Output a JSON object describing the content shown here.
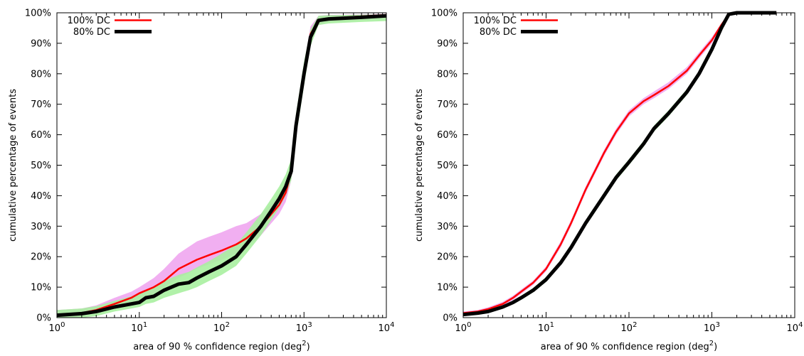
{
  "chart_data": [
    {
      "type": "line",
      "x_scale": "log",
      "xlim": [
        1,
        10000
      ],
      "ylim": [
        0,
        100
      ],
      "xlabel": "area of 90 % confidence region (deg",
      "xlabel_sup": "2",
      "xlabel_suffix": ")",
      "ylabel": "cumulative percentage of events",
      "x_ticks": [
        {
          "value": 1,
          "base": "10",
          "exp": "0"
        },
        {
          "value": 10,
          "base": "10",
          "exp": "1"
        },
        {
          "value": 100,
          "base": "10",
          "exp": "2"
        },
        {
          "value": 1000,
          "base": "10",
          "exp": "3"
        },
        {
          "value": 10000,
          "base": "10",
          "exp": "4"
        }
      ],
      "y_ticks": [
        {
          "value": 0,
          "label": "0%"
        },
        {
          "value": 10,
          "label": "10%"
        },
        {
          "value": 20,
          "label": "20%"
        },
        {
          "value": 30,
          "label": "30%"
        },
        {
          "value": 40,
          "label": "40%"
        },
        {
          "value": 50,
          "label": "50%"
        },
        {
          "value": 60,
          "label": "60%"
        },
        {
          "value": 70,
          "label": "70%"
        },
        {
          "value": 80,
          "label": "80%"
        },
        {
          "value": 90,
          "label": "90%"
        },
        {
          "value": 100,
          "label": "100%"
        }
      ],
      "grid": false,
      "legend_position": "top-left",
      "series": [
        {
          "name": "100% DC",
          "color": "#ff0000",
          "band_color": "#f0a6f0",
          "x": [
            1,
            2,
            3,
            5,
            8,
            10,
            15,
            20,
            30,
            50,
            70,
            100,
            150,
            200,
            300,
            500,
            600,
            700,
            800,
            900,
            1000,
            1200,
            1500,
            2000,
            5000,
            10000
          ],
          "y": [
            1,
            1.5,
            2.5,
            4.5,
            6.5,
            8,
            10,
            12,
            16,
            19,
            20.5,
            22,
            24,
            26,
            30,
            37,
            41,
            48,
            62,
            73,
            80,
            93,
            97.5,
            98.2,
            98.8,
            99.3
          ],
          "band_low": [
            0,
            0.5,
            1.5,
            3,
            5,
            6,
            8,
            10,
            13,
            16,
            17.5,
            19,
            21,
            23,
            27,
            34,
            38,
            45,
            58,
            69,
            76,
            90,
            96,
            97,
            97.5,
            97.8
          ],
          "band_high": [
            2.5,
            3,
            4,
            6.5,
            8.5,
            10,
            13,
            16,
            21,
            25,
            26.5,
            28,
            30,
            31,
            34,
            40,
            44,
            51,
            65,
            76,
            83,
            95.5,
            99,
            99.3,
            99.5,
            99.6
          ]
        },
        {
          "name": "80% DC",
          "color": "#000000",
          "band_color": "#a8f0a0",
          "x": [
            1,
            2,
            3,
            5,
            8,
            10,
            12,
            15,
            20,
            30,
            40,
            50,
            70,
            100,
            150,
            200,
            300,
            400,
            500,
            600,
            700,
            800,
            900,
            1000,
            1200,
            1500,
            2000,
            5000,
            10000
          ],
          "y": [
            0.8,
            1.3,
            2,
            3.5,
            4.5,
            5,
            6.5,
            7,
            9,
            11,
            11.5,
            13,
            15,
            17,
            20,
            24,
            30,
            35,
            39,
            43,
            48,
            63,
            72,
            80,
            92,
            97.5,
            98,
            98.5,
            99
          ],
          "band_low": [
            0,
            0,
            0.5,
            2,
            3,
            3.5,
            4.5,
            5,
            6.5,
            8,
            9,
            10,
            12,
            14,
            17,
            21,
            27,
            32,
            36,
            40,
            45,
            59,
            68,
            76,
            89,
            96,
            96.5,
            97,
            97.3
          ],
          "band_high": [
            2.5,
            3,
            3.8,
            5.5,
            7,
            8,
            9,
            10,
            12,
            14,
            15,
            16.5,
            18.5,
            21,
            24,
            28,
            34,
            39,
            43,
            47,
            52,
            67,
            76,
            84,
            94.5,
            99,
            99.2,
            99.4,
            99.5
          ]
        }
      ]
    },
    {
      "type": "line",
      "x_scale": "log",
      "xlim": [
        1,
        10000
      ],
      "ylim": [
        0,
        100
      ],
      "xlabel": "area of 90 % confidence region (deg",
      "xlabel_sup": "2",
      "xlabel_suffix": ")",
      "ylabel": "cumulative percentage of events",
      "x_ticks": [
        {
          "value": 1,
          "base": "10",
          "exp": "0"
        },
        {
          "value": 10,
          "base": "10",
          "exp": "1"
        },
        {
          "value": 100,
          "base": "10",
          "exp": "2"
        },
        {
          "value": 1000,
          "base": "10",
          "exp": "3"
        },
        {
          "value": 10000,
          "base": "10",
          "exp": "4"
        }
      ],
      "y_ticks": [
        {
          "value": 0,
          "label": "0%"
        },
        {
          "value": 10,
          "label": "10%"
        },
        {
          "value": 20,
          "label": "20%"
        },
        {
          "value": 30,
          "label": "30%"
        },
        {
          "value": 40,
          "label": "40%"
        },
        {
          "value": 50,
          "label": "50%"
        },
        {
          "value": 60,
          "label": "60%"
        },
        {
          "value": 70,
          "label": "70%"
        },
        {
          "value": 80,
          "label": "80%"
        },
        {
          "value": 90,
          "label": "90%"
        },
        {
          "value": 100,
          "label": "100%"
        }
      ],
      "grid": false,
      "legend_position": "top-left",
      "series": [
        {
          "name": "100% DC",
          "color": "#ff0000",
          "band_color": "#f0a6f0",
          "x": [
            1,
            1.5,
            2,
            3,
            4,
            5,
            7,
            10,
            15,
            20,
            30,
            50,
            70,
            100,
            150,
            200,
            300,
            500,
            700,
            1000,
            1300,
            1600,
            2000,
            6000
          ],
          "y": [
            1.5,
            2,
            2.8,
            4.5,
            6.5,
            8.5,
            11.5,
            16,
            24,
            31,
            42,
            54,
            61,
            67,
            71,
            73,
            76,
            81,
            86,
            91,
            96,
            99.5,
            100,
            100
          ],
          "band_low": [
            1,
            1.5,
            2.2,
            3.8,
            5.8,
            7.8,
            10.8,
            15.2,
            23,
            30,
            41,
            53,
            60,
            66,
            70,
            72,
            75,
            80,
            85,
            90,
            95.5,
            99.3,
            99.9,
            99.9
          ],
          "band_high": [
            2,
            2.5,
            3.4,
            5.2,
            7.2,
            9.2,
            12.2,
            16.8,
            25,
            32,
            43,
            55,
            62,
            68,
            72,
            74.2,
            77.2,
            82.2,
            87,
            92,
            96.5,
            99.7,
            100,
            100
          ]
        },
        {
          "name": "80% DC",
          "color": "#000000",
          "band_color": "#a8f0a0",
          "x": [
            1,
            1.5,
            2,
            3,
            4,
            5,
            7,
            10,
            15,
            20,
            30,
            50,
            70,
            100,
            150,
            200,
            300,
            500,
            700,
            1000,
            1300,
            1600,
            2000,
            6000
          ],
          "y": [
            1,
            1.5,
            2,
            3.5,
            5,
            6.5,
            9,
            12.5,
            18,
            23,
            31,
            40,
            46,
            51,
            57,
            62,
            67,
            74,
            80,
            88,
            95,
            99.5,
            100,
            100
          ],
          "band_low": [
            0.6,
            1.1,
            1.5,
            3,
            4.4,
            5.9,
            8.3,
            11.7,
            17.2,
            22.2,
            30,
            39,
            45,
            50,
            56,
            61,
            66,
            73,
            79,
            87,
            94.5,
            99.3,
            99.9,
            99.9
          ],
          "band_high": [
            1.4,
            1.9,
            2.5,
            4,
            5.6,
            7.1,
            9.7,
            13.3,
            18.8,
            23.8,
            32,
            41,
            47,
            52,
            58,
            63,
            68,
            75,
            81,
            89,
            95.5,
            99.7,
            100,
            100
          ]
        }
      ]
    }
  ]
}
